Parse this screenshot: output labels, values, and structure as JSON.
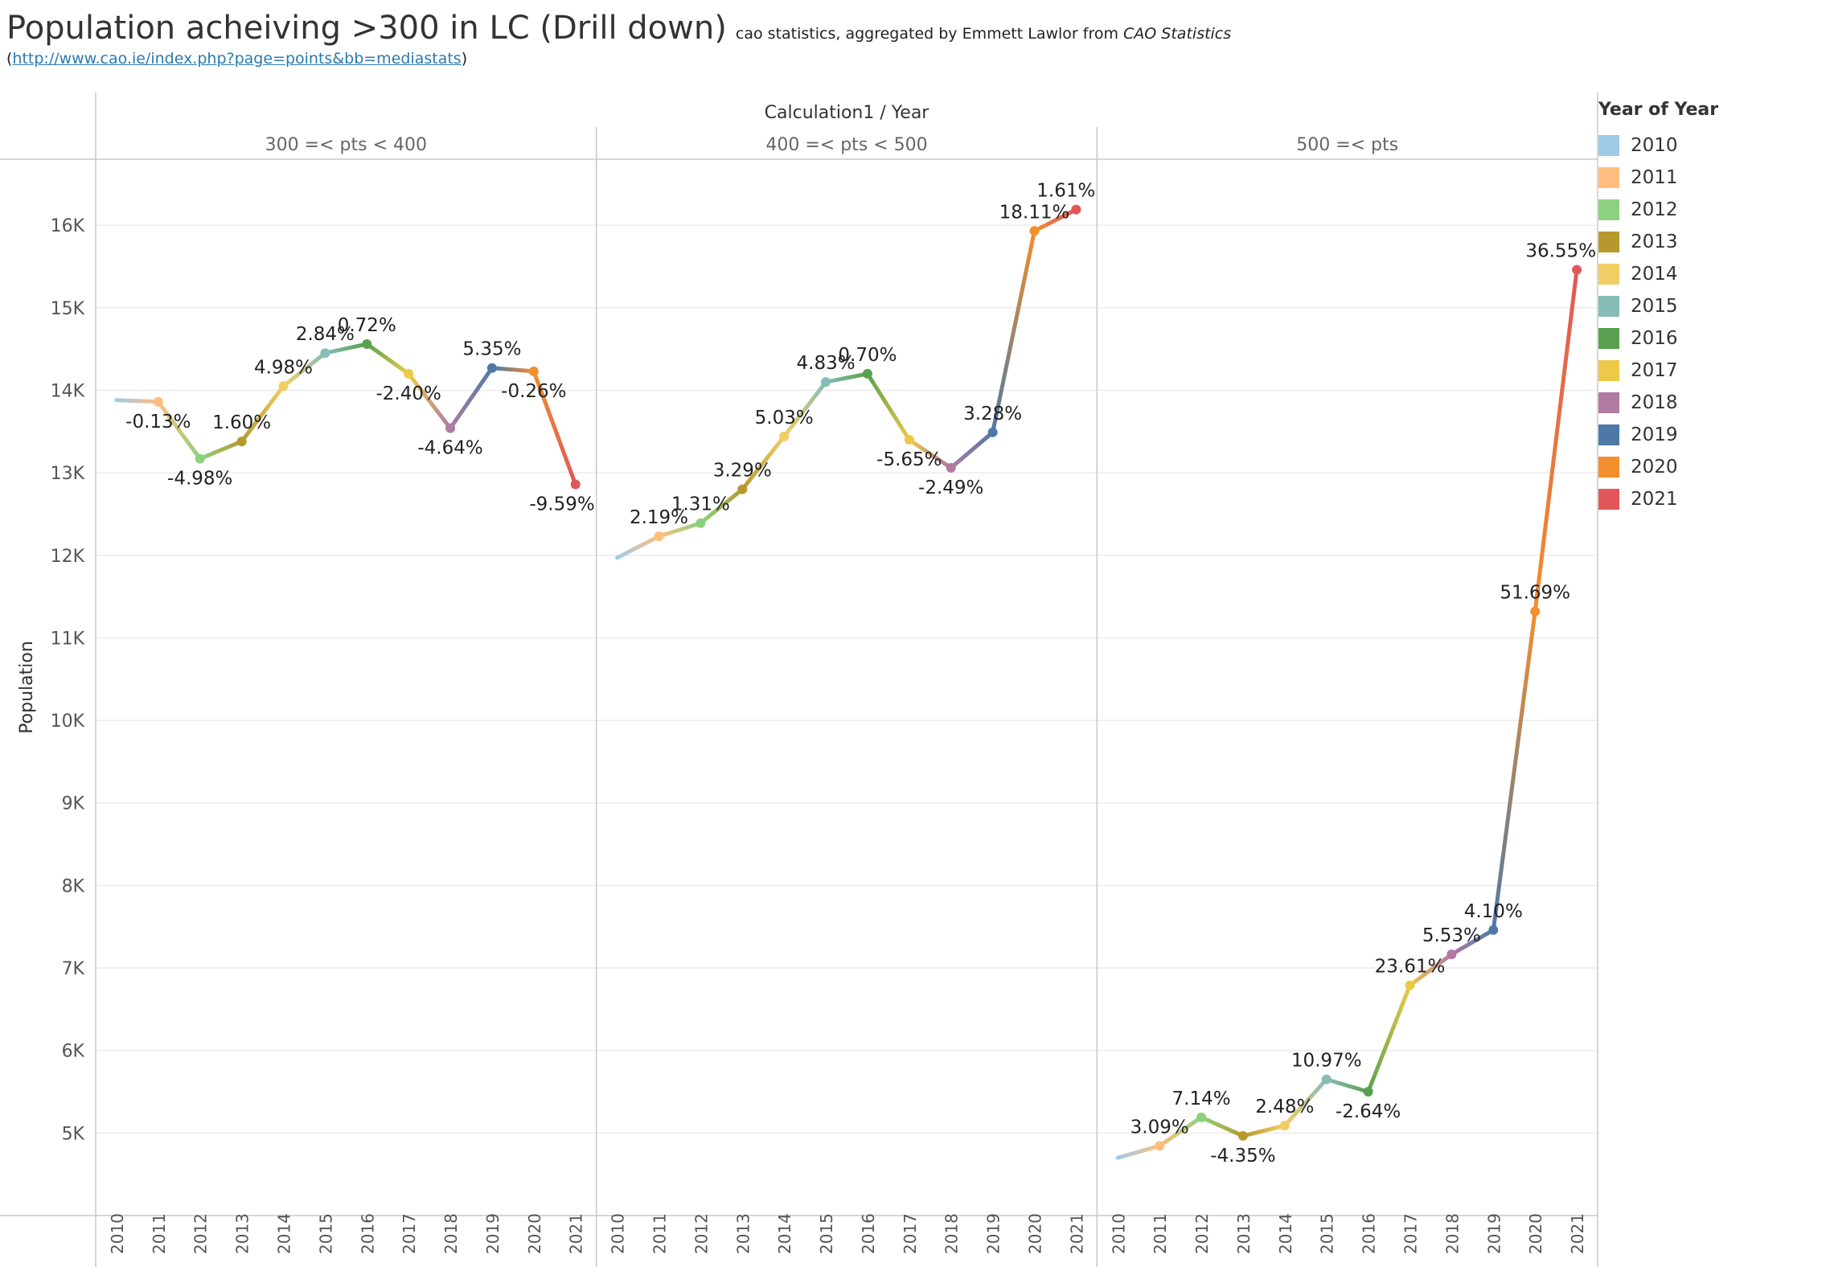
{
  "title": "Population acheiving >300 in LC (Drill down)",
  "subtitle_prefix": "cao statistics, aggregated by Emmett Lawlor from",
  "subtitle_source": "CAO Statistics",
  "link_open": "(",
  "link_text": "http://www.cao.ie/index.php?page=points&bb=mediastats",
  "link_close": ")",
  "legend": {
    "title": "Year of Year",
    "items": [
      {
        "label": "2010",
        "color": "#a0cbe8"
      },
      {
        "label": "2011",
        "color": "#ffbe7d"
      },
      {
        "label": "2012",
        "color": "#8cd17d"
      },
      {
        "label": "2013",
        "color": "#b6992d"
      },
      {
        "label": "2014",
        "color": "#f1ce63"
      },
      {
        "label": "2015",
        "color": "#86bcb6"
      },
      {
        "label": "2016",
        "color": "#59a14f"
      },
      {
        "label": "2017",
        "color": "#edc948"
      },
      {
        "label": "2018",
        "color": "#b07aa1"
      },
      {
        "label": "2019",
        "color": "#4e79a7"
      },
      {
        "label": "2020",
        "color": "#f28e2b"
      },
      {
        "label": "2021",
        "color": "#e15759"
      }
    ]
  },
  "chart_data": {
    "type": "line",
    "header_title": "Calculation1 / Year",
    "ylabel": "Population",
    "ylim": [
      4000,
      16800
    ],
    "yticks": [
      5000,
      6000,
      7000,
      8000,
      9000,
      10000,
      11000,
      12000,
      13000,
      14000,
      15000,
      16000
    ],
    "ytick_labels": [
      "5K",
      "6K",
      "7K",
      "8K",
      "9K",
      "10K",
      "11K",
      "12K",
      "13K",
      "14K",
      "15K",
      "16K"
    ],
    "grid": true,
    "legend_position": "right",
    "x": [
      "2010",
      "2011",
      "2012",
      "2013",
      "2014",
      "2015",
      "2016",
      "2017",
      "2018",
      "2019",
      "2020",
      "2021"
    ],
    "panels": [
      {
        "name": "300 =< pts < 400",
        "values": [
          13880,
          13860,
          13170,
          13380,
          14050,
          14450,
          14560,
          14200,
          13540,
          14270,
          14230,
          12860
        ],
        "labels": [
          "",
          "-0.13%",
          "-4.98%",
          "1.60%",
          "4.98%",
          "2.84%",
          "0.72%",
          "-2.40%",
          "-4.64%",
          "5.35%",
          "-0.26%",
          "-9.59%"
        ]
      },
      {
        "name": "400 =< pts < 500",
        "values": [
          11970,
          12230,
          12390,
          12800,
          13440,
          14100,
          14200,
          13400,
          13060,
          13490,
          15930,
          16190
        ],
        "labels": [
          "",
          "2.19%",
          "1.31%",
          "3.29%",
          "5.03%",
          "4.83%",
          "0.70%",
          "-5.65%",
          "-2.49%",
          "3.28%",
          "18.11%",
          "1.61%"
        ]
      },
      {
        "name": "500 =< pts",
        "values": [
          4700,
          4845,
          5190,
          4965,
          5090,
          5650,
          5500,
          6790,
          7165,
          7460,
          11320,
          15460
        ],
        "labels": [
          "",
          "3.09%",
          "7.14%",
          "-4.35%",
          "2.48%",
          "10.97%",
          "-2.64%",
          "23.61%",
          "5.53%",
          "4.10%",
          "51.69%",
          "36.55%"
        ]
      }
    ]
  }
}
